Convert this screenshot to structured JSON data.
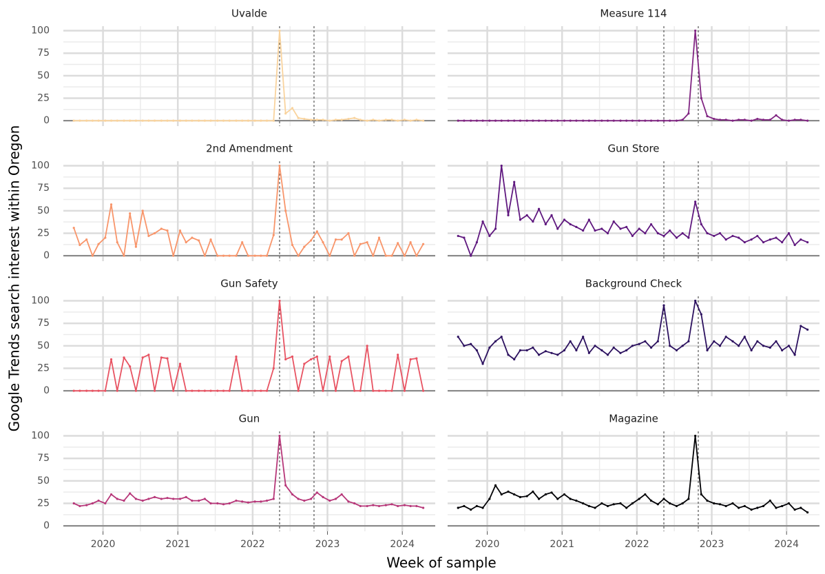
{
  "chart_data": {
    "type": "line",
    "xlabel": "Week of sample",
    "ylabel": "Google Trends search interest within Oregon",
    "x": [
      2019.61,
      2019.69,
      2019.78,
      2019.86,
      2019.94,
      2020.03,
      2020.11,
      2020.19,
      2020.28,
      2020.36,
      2020.44,
      2020.53,
      2020.61,
      2020.69,
      2020.78,
      2020.86,
      2020.94,
      2021.03,
      2021.11,
      2021.19,
      2021.28,
      2021.36,
      2021.44,
      2021.53,
      2021.61,
      2021.69,
      2021.78,
      2021.86,
      2021.94,
      2022.03,
      2022.11,
      2022.19,
      2022.28,
      2022.36,
      2022.44,
      2022.53,
      2022.61,
      2022.69,
      2022.78,
      2022.86,
      2022.94,
      2023.03,
      2023.11,
      2023.19,
      2023.28,
      2023.36,
      2023.44,
      2023.53,
      2023.61,
      2023.69,
      2023.78,
      2023.86,
      2023.94,
      2024.03,
      2024.11,
      2024.19,
      2024.28
    ],
    "xlim": [
      2019.47,
      2024.44
    ],
    "xticks": [
      2020,
      2021,
      2022,
      2023,
      2024
    ],
    "xminor": [
      2020.5,
      2021.5,
      2022.5,
      2023.5
    ],
    "ylim": [
      -6,
      105
    ],
    "yticks": [
      0,
      25,
      50,
      75,
      100
    ],
    "yminor": [
      12.5,
      37.5,
      62.5,
      87.5
    ],
    "grid": true,
    "vlines": [
      2022.36,
      2022.82
    ],
    "series": [
      {
        "name": "Uvalde",
        "color": "#f9d39d",
        "values": [
          0,
          0,
          0,
          0,
          0,
          0,
          0,
          0,
          0,
          0,
          0,
          0,
          0,
          0,
          0,
          0,
          0,
          0,
          0,
          0,
          0,
          0,
          0,
          0,
          0,
          0,
          0,
          0,
          0,
          0,
          0,
          0,
          0,
          100,
          8,
          14,
          3,
          2,
          1,
          1,
          1,
          0,
          1,
          1,
          2,
          3,
          1,
          0,
          1,
          0,
          1,
          1,
          0,
          1,
          0,
          1,
          0
        ]
      },
      {
        "name": "Measure 114",
        "color": "#802582",
        "values": [
          0,
          0,
          0,
          0,
          0,
          0,
          0,
          0,
          0,
          0,
          0,
          0,
          0,
          0,
          0,
          0,
          0,
          0,
          0,
          0,
          0,
          0,
          0,
          0,
          0,
          0,
          0,
          0,
          0,
          0,
          0,
          0,
          0,
          0,
          0,
          0,
          1,
          8,
          100,
          25,
          5,
          2,
          1,
          1,
          0,
          1,
          1,
          0,
          2,
          1,
          1,
          6,
          1,
          0,
          1,
          1,
          0
        ]
      },
      {
        "name": "2nd Amendment",
        "color": "#f8956a",
        "values": [
          31,
          12,
          18,
          0,
          13,
          20,
          57,
          15,
          0,
          47,
          10,
          50,
          22,
          25,
          30,
          28,
          0,
          28,
          15,
          20,
          17,
          0,
          18,
          0,
          0,
          0,
          0,
          15,
          0,
          0,
          0,
          0,
          23,
          100,
          50,
          12,
          0,
          10,
          17,
          27,
          15,
          0,
          18,
          18,
          25,
          0,
          13,
          15,
          0,
          20,
          0,
          0,
          14,
          0,
          15,
          0,
          13
        ]
      },
      {
        "name": "Gun Store",
        "color": "#5f187f",
        "values": [
          22,
          20,
          0,
          15,
          38,
          22,
          30,
          100,
          45,
          82,
          40,
          45,
          38,
          52,
          35,
          45,
          30,
          40,
          35,
          32,
          28,
          40,
          28,
          30,
          25,
          38,
          30,
          32,
          22,
          30,
          25,
          35,
          25,
          22,
          28,
          20,
          25,
          20,
          60,
          35,
          25,
          22,
          25,
          18,
          22,
          20,
          15,
          18,
          22,
          15,
          18,
          20,
          15,
          25,
          12,
          18,
          15
        ]
      },
      {
        "name": "Gun Safety",
        "color": "#e85362",
        "values": [
          0,
          0,
          0,
          0,
          0,
          0,
          35,
          0,
          37,
          27,
          0,
          37,
          40,
          0,
          37,
          36,
          0,
          30,
          0,
          0,
          0,
          0,
          0,
          0,
          0,
          0,
          38,
          0,
          0,
          0,
          0,
          0,
          25,
          100,
          35,
          38,
          0,
          30,
          35,
          38,
          0,
          38,
          0,
          33,
          38,
          0,
          0,
          50,
          0,
          0,
          0,
          0,
          40,
          0,
          35,
          36,
          0
        ]
      },
      {
        "name": "Background Check",
        "color": "#2c115f",
        "values": [
          60,
          50,
          52,
          45,
          30,
          48,
          55,
          60,
          40,
          35,
          45,
          45,
          48,
          40,
          44,
          42,
          40,
          45,
          55,
          45,
          60,
          42,
          50,
          45,
          40,
          48,
          42,
          45,
          50,
          52,
          55,
          48,
          55,
          95,
          50,
          45,
          50,
          55,
          100,
          85,
          45,
          55,
          50,
          60,
          55,
          50,
          60,
          45,
          55,
          50,
          48,
          55,
          45,
          50,
          40,
          72,
          68
        ]
      },
      {
        "name": "Gun",
        "color": "#b73779",
        "values": [
          25,
          22,
          23,
          25,
          28,
          25,
          35,
          30,
          28,
          36,
          30,
          28,
          30,
          32,
          30,
          31,
          30,
          30,
          32,
          28,
          28,
          30,
          25,
          25,
          24,
          25,
          28,
          27,
          26,
          27,
          27,
          28,
          30,
          100,
          45,
          35,
          30,
          28,
          30,
          37,
          32,
          28,
          30,
          35,
          27,
          25,
          22,
          22,
          23,
          22,
          23,
          24,
          22,
          23,
          22,
          22,
          20
        ]
      },
      {
        "name": "Magazine",
        "color": "#000004",
        "values": [
          20,
          22,
          18,
          22,
          20,
          30,
          45,
          35,
          38,
          35,
          32,
          33,
          38,
          30,
          35,
          37,
          30,
          35,
          30,
          28,
          25,
          22,
          20,
          25,
          22,
          24,
          25,
          20,
          25,
          30,
          35,
          28,
          24,
          30,
          25,
          22,
          25,
          30,
          100,
          35,
          28,
          25,
          24,
          22,
          25,
          20,
          22,
          18,
          20,
          22,
          28,
          20,
          22,
          25,
          18,
          20,
          15
        ]
      }
    ]
  }
}
